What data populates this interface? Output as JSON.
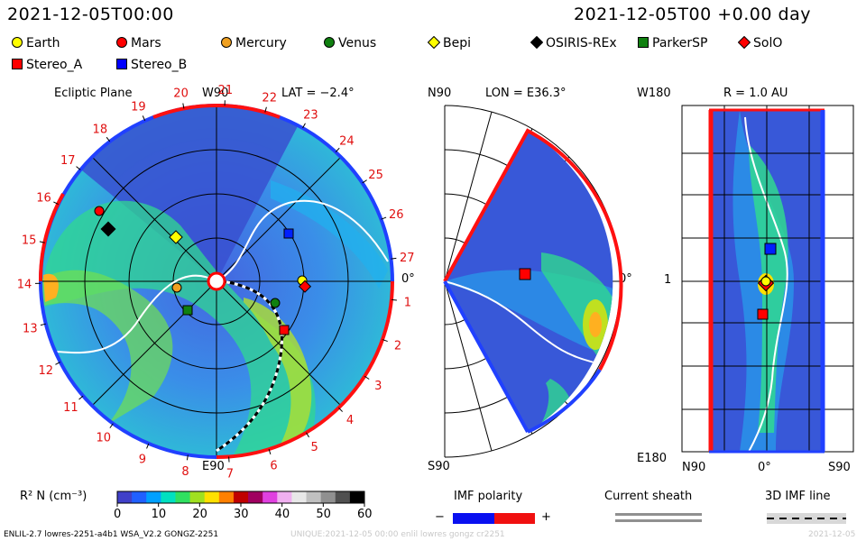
{
  "header": {
    "left_timestamp": "2021-12-05T00:00",
    "right_timestamp": "2021-12-05T00 +0.00 day"
  },
  "legend": [
    {
      "label": "Earth",
      "shape": "circle",
      "color": "#ffff00"
    },
    {
      "label": "Mars",
      "shape": "circle",
      "color": "#ff0000"
    },
    {
      "label": "Mercury",
      "shape": "circle",
      "color": "#f0a020"
    },
    {
      "label": "Venus",
      "shape": "circle",
      "color": "#108010"
    },
    {
      "label": "Bepi",
      "shape": "diamond",
      "color": "#ffff00"
    },
    {
      "label": "OSIRIS-REx",
      "shape": "diamond",
      "color": "#000000"
    },
    {
      "label": "ParkerSP",
      "shape": "square",
      "color": "#108010"
    },
    {
      "label": "SolO",
      "shape": "diamond",
      "color": "#ff0000"
    },
    {
      "label": "Stereo_A",
      "shape": "square",
      "color": "#ff0000"
    },
    {
      "label": "Stereo_B",
      "shape": "square",
      "color": "#0000ff"
    }
  ],
  "panels": {
    "ecliptic": {
      "title": "Ecliptic Plane",
      "lat_label": "LAT = −2.4°",
      "top_label": "W90",
      "bottom_label": "E90",
      "right_label": "0°",
      "carrington_ticks": [
        "1",
        "2",
        "3",
        "4",
        "5",
        "6",
        "7",
        "8",
        "9",
        "10",
        "11",
        "12",
        "13",
        "14",
        "15",
        "16",
        "17",
        "18",
        "19",
        "20",
        "21",
        "22",
        "23",
        "24",
        "25",
        "26",
        "27"
      ]
    },
    "meridional": {
      "lon_label": "LON = E36.3°",
      "top_label": "N90",
      "bottom_label": "S90",
      "right_label": "0°"
    },
    "radial": {
      "r_label": "R = 1.0 AU",
      "top_label": "W180",
      "bottom_label": "E180",
      "left_label": "1",
      "x_left": "N90",
      "x_mid": "0°",
      "x_right": "S90"
    }
  },
  "colorbar": {
    "label": "R² N (cm⁻³)",
    "ticks": [
      "0",
      "10",
      "20",
      "30",
      "40",
      "50",
      "60"
    ],
    "colors": [
      "#4040c8",
      "#2060ff",
      "#00a0ff",
      "#00e0c0",
      "#30e060",
      "#a0e020",
      "#ffe000",
      "#ff8000",
      "#c00000",
      "#a00060",
      "#e040e0",
      "#f0b0f0",
      "#e8e8e8",
      "#c0c0c0",
      "#909090",
      "#505050",
      "#000000"
    ]
  },
  "imf_polarity": {
    "label": "IMF polarity",
    "minus": "−",
    "plus": "+"
  },
  "current_sheath": {
    "label": "Current sheath"
  },
  "imf_line": {
    "label": "3D IMF line"
  },
  "footer": {
    "left": "ENLIL-2.7 lowres-2251-a4b1 WSA_V2.2 GONGZ-2251",
    "middle": "UNIQUE:2021-12-05 00:00 enlil lowres gongz cr2251",
    "right": "2021-12-05"
  }
}
